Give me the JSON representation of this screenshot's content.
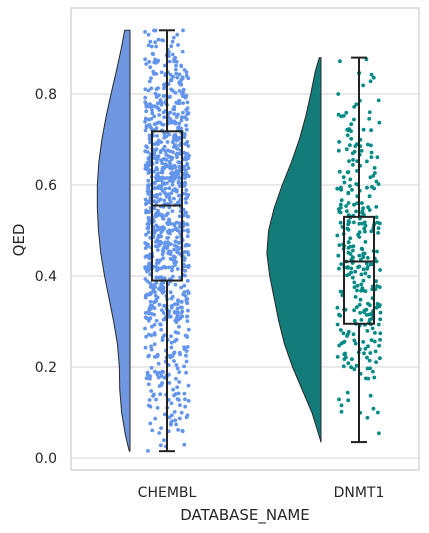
{
  "chart_data": {
    "type": "raincloud",
    "xlabel": "DATABASE_NAME",
    "ylabel": "QED",
    "ylim": [
      -0.03,
      0.99
    ],
    "yticks": [
      "0.0",
      "0.2",
      "0.4",
      "0.6",
      "0.8"
    ],
    "grid": true,
    "categories": [
      "CHEMBL",
      "DNMT1"
    ],
    "series": [
      {
        "category": "CHEMBL",
        "violin_color": "#6f96e0",
        "point_color": "#6495ed",
        "n_points": 1000,
        "box": {
          "whisker_low": 0.015,
          "q1": 0.39,
          "median": 0.555,
          "q3": 0.718,
          "whisker_high": 0.94
        },
        "density_profile": [
          [
            0.015,
            0.02
          ],
          [
            0.05,
            0.12
          ],
          [
            0.1,
            0.22
          ],
          [
            0.15,
            0.27
          ],
          [
            0.2,
            0.28
          ],
          [
            0.25,
            0.33
          ],
          [
            0.3,
            0.43
          ],
          [
            0.35,
            0.55
          ],
          [
            0.4,
            0.67
          ],
          [
            0.45,
            0.77
          ],
          [
            0.5,
            0.83
          ],
          [
            0.55,
            0.86
          ],
          [
            0.6,
            0.86
          ],
          [
            0.65,
            0.82
          ],
          [
            0.7,
            0.74
          ],
          [
            0.75,
            0.63
          ],
          [
            0.8,
            0.5
          ],
          [
            0.85,
            0.36
          ],
          [
            0.9,
            0.23
          ],
          [
            0.94,
            0.14
          ]
        ]
      },
      {
        "category": "DNMT1",
        "violin_color": "#147b7b",
        "point_color": "#038a85",
        "n_points": 320,
        "box": {
          "whisker_low": 0.035,
          "q1": 0.295,
          "median": 0.432,
          "q3": 0.53,
          "whisker_high": 0.88
        },
        "density_profile": [
          [
            0.035,
            0.0
          ],
          [
            0.06,
            0.06
          ],
          [
            0.1,
            0.16
          ],
          [
            0.15,
            0.33
          ],
          [
            0.2,
            0.5
          ],
          [
            0.25,
            0.64
          ],
          [
            0.3,
            0.74
          ],
          [
            0.35,
            0.82
          ],
          [
            0.4,
            0.9
          ],
          [
            0.45,
            0.95
          ],
          [
            0.5,
            0.92
          ],
          [
            0.55,
            0.82
          ],
          [
            0.6,
            0.68
          ],
          [
            0.65,
            0.52
          ],
          [
            0.7,
            0.38
          ],
          [
            0.75,
            0.27
          ],
          [
            0.8,
            0.18
          ],
          [
            0.85,
            0.1
          ],
          [
            0.88,
            0.03
          ]
        ]
      }
    ]
  }
}
